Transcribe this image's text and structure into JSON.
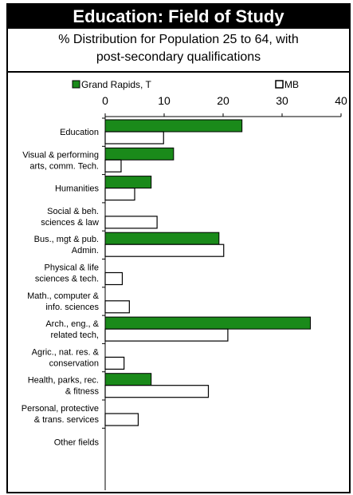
{
  "title": "Education: Field of Study",
  "subtitle_lines": [
    "% Distribution for Population 25 to 64, with",
    "post-secondary qualifications"
  ],
  "colors": {
    "series_1": "#1a8a1a",
    "series_2": "#ffffff",
    "outline": "#000000"
  },
  "chart_data": {
    "type": "bar",
    "orientation": "horizontal",
    "xlim": [
      0,
      40
    ],
    "x_ticks": [
      0,
      10,
      20,
      30,
      40
    ],
    "legend_placement": "top",
    "grid": false,
    "categories": [
      [
        "Education"
      ],
      [
        "Visual & performing",
        "arts, comm. Tech."
      ],
      [
        "Humanities"
      ],
      [
        "Social & beh.",
        "sciences & law"
      ],
      [
        "Bus., mgt & pub.",
        "Admin."
      ],
      [
        "Physical & life",
        "sciences & tech."
      ],
      [
        "Math., computer &",
        "info. sciences"
      ],
      [
        "Arch., eng., &",
        "related tech,"
      ],
      [
        "Agric., nat. res. &",
        "conservation"
      ],
      [
        "Health, parks, rec.",
        "& fitness"
      ],
      [
        "Personal, protective",
        "& trans. services"
      ],
      [
        "Other fields"
      ]
    ],
    "series": [
      {
        "name": "Grand Rapids, T",
        "color": "#1a8a1a",
        "values": [
          23.2,
          11.6,
          7.8,
          0,
          19.3,
          0,
          0,
          34.8,
          0,
          7.8,
          0,
          0
        ]
      },
      {
        "name": "MB",
        "color": "#ffffff",
        "values": [
          9.9,
          2.7,
          5.0,
          8.8,
          20.1,
          2.9,
          4.1,
          20.8,
          3.2,
          17.5,
          5.6,
          0
        ]
      }
    ]
  }
}
